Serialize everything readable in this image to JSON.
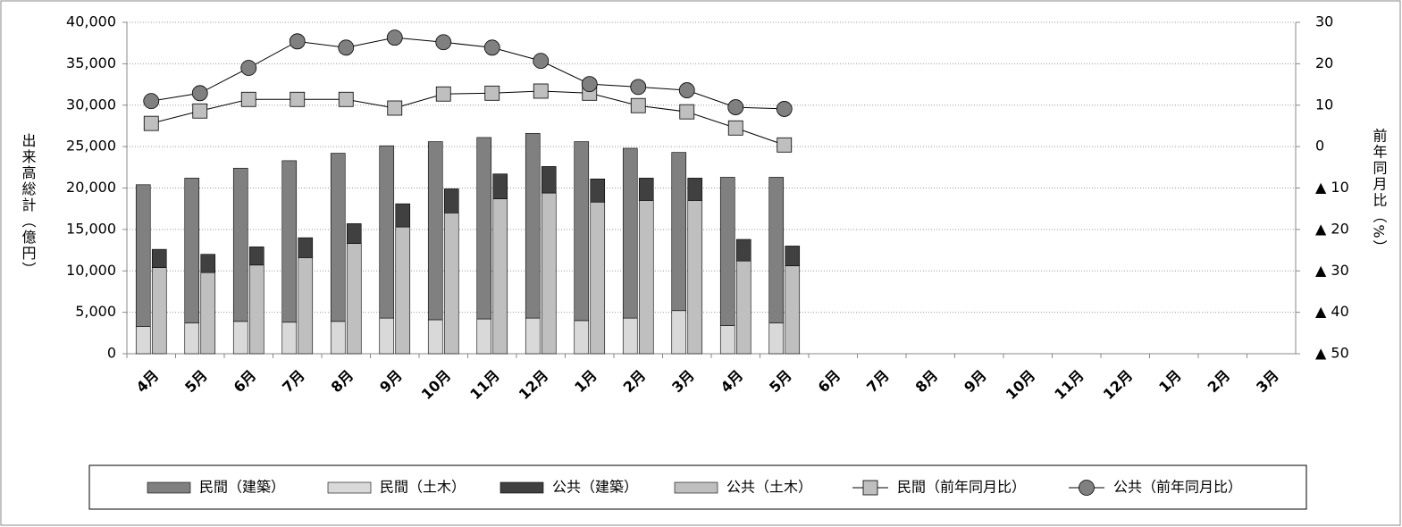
{
  "chart_data": {
    "type": "bar",
    "y_label": "出来高総計（億円）",
    "y2_label": "前年同月比（%）",
    "categories": [
      "4月",
      "5月",
      "6月",
      "7月",
      "8月",
      "9月",
      "10月",
      "11月",
      "12月",
      "1月",
      "2月",
      "3月",
      "4月",
      "5月",
      "6月",
      "7月",
      "8月",
      "9月",
      "10月",
      "11月",
      "12月",
      "1月",
      "2月",
      "3月"
    ],
    "ylim": [
      0,
      40000
    ],
    "yticks": [
      0,
      {
        "value": 5000,
        "label": "5,000"
      },
      {
        "value": 10000,
        "label": "10,000"
      },
      {
        "value": 15000,
        "label": "15,000"
      },
      {
        "value": 20000,
        "label": "20,000"
      },
      {
        "value": 25000,
        "label": "25,000"
      },
      {
        "value": 30000,
        "label": "30,000"
      },
      {
        "value": 35000,
        "label": "35,000"
      },
      {
        "value": 40000,
        "label": "40,000"
      }
    ],
    "y2lim": [
      -50,
      30
    ],
    "y2ticks": [
      30,
      20,
      10,
      0,
      {
        "value": -10,
        "label": "▲ 10"
      },
      {
        "value": -20,
        "label": "▲ 20"
      },
      {
        "value": -30,
        "label": "▲ 30"
      },
      {
        "value": -40,
        "label": "▲ 40"
      },
      {
        "value": -50,
        "label": "▲ 50"
      }
    ],
    "grid": true,
    "series": [
      {
        "name": "民間（建築）",
        "color": "#808080",
        "values": [
          17100,
          17500,
          18500,
          19500,
          20300,
          20800,
          21500,
          21900,
          22300,
          21600,
          20500,
          19100,
          17900,
          17600,
          null,
          null,
          null,
          null,
          null,
          null,
          null,
          null,
          null,
          null
        ]
      },
      {
        "name": "民間（土木）",
        "color": "#d9d9d9",
        "values": [
          3300,
          3700,
          3900,
          3800,
          3900,
          4300,
          4100,
          4200,
          4300,
          4000,
          4300,
          5200,
          3400,
          3700,
          null,
          null,
          null,
          null,
          null,
          null,
          null,
          null,
          null,
          null
        ]
      },
      {
        "name": "公共（建築）",
        "color": "#404040",
        "values": [
          2200,
          2200,
          2200,
          2400,
          2400,
          2800,
          2900,
          3000,
          3200,
          2800,
          2700,
          2700,
          2600,
          2400,
          null,
          null,
          null,
          null,
          null,
          null,
          null,
          null,
          null,
          null
        ]
      },
      {
        "name": "公共（土木）",
        "color": "#bfbfbf",
        "values": [
          10400,
          9800,
          10700,
          11600,
          13300,
          15300,
          17000,
          18700,
          19400,
          18300,
          18500,
          18500,
          11200,
          10600,
          null,
          null,
          null,
          null,
          null,
          null,
          null,
          null,
          null,
          null
        ]
      },
      {
        "name": "民間（前年同月比）",
        "color": "#bfbfbf",
        "axis": "y2",
        "marker": "square",
        "values": [
          5.6,
          8.6,
          11.4,
          11.4,
          11.4,
          9.3,
          12.7,
          12.9,
          13.4,
          12.9,
          9.9,
          8.4,
          4.5,
          0.4,
          null,
          null,
          null,
          null,
          null,
          null,
          null,
          null,
          null,
          null
        ]
      },
      {
        "name": "公共（前年同月比）",
        "color": "#808080",
        "axis": "y2",
        "marker": "circle",
        "values": [
          11.0,
          12.9,
          19.0,
          25.4,
          23.9,
          26.3,
          25.2,
          23.9,
          20.7,
          15.1,
          14.4,
          13.6,
          9.5,
          9.1,
          null,
          null,
          null,
          null,
          null,
          null,
          null,
          null,
          null,
          null
        ]
      }
    ]
  }
}
